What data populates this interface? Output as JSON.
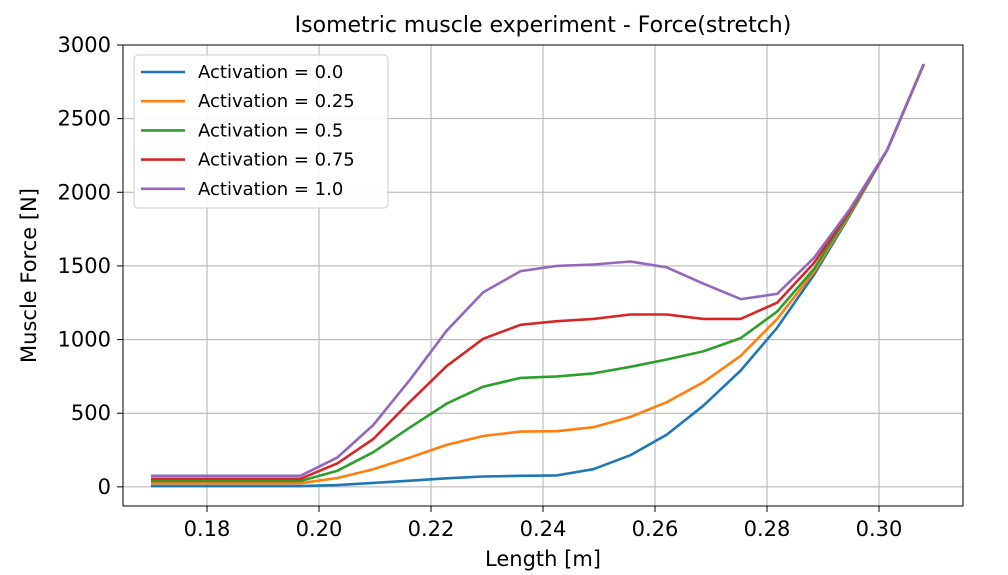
{
  "chart_data": {
    "type": "line",
    "title": "Isometric muscle experiment - Force(stretch)",
    "xlabel": "Length [m]",
    "ylabel": "Muscle Force [N]",
    "xlim": [
      0.165,
      0.315
    ],
    "ylim": [
      -130,
      3000
    ],
    "xticks": [
      0.18,
      0.2,
      0.22,
      0.24,
      0.26,
      0.28,
      0.3
    ],
    "xtick_labels": [
      "0.18",
      "0.20",
      "0.22",
      "0.24",
      "0.26",
      "0.28",
      "0.30"
    ],
    "yticks": [
      0,
      500,
      1000,
      1500,
      2000,
      2500,
      3000
    ],
    "ytick_labels": [
      "0",
      "500",
      "1000",
      "1500",
      "2000",
      "2500",
      "3000"
    ],
    "grid": true,
    "legend_position": "top-left",
    "x": [
      0.17,
      0.1967,
      0.2033,
      0.2097,
      0.2163,
      0.2228,
      0.2293,
      0.236,
      0.2425,
      0.249,
      0.2556,
      0.2621,
      0.2686,
      0.2753,
      0.2818,
      0.2884,
      0.2949,
      0.3015,
      0.308
    ],
    "series": [
      {
        "name": "Activation = 0.0",
        "color": "#1f77b4",
        "values": [
          5,
          5,
          12,
          27,
          42,
          58,
          70,
          75,
          78,
          120,
          215,
          355,
          550,
          790,
          1080,
          1440,
          1850,
          2290,
          2870
        ]
      },
      {
        "name": "Activation = 0.25",
        "color": "#ff7f0e",
        "values": [
          25,
          25,
          60,
          120,
          200,
          285,
          345,
          375,
          378,
          405,
          475,
          575,
          710,
          890,
          1140,
          1460,
          1860,
          2290,
          2870
        ]
      },
      {
        "name": "Activation = 0.5",
        "color": "#2ca02c",
        "values": [
          40,
          40,
          110,
          235,
          405,
          565,
          680,
          740,
          750,
          770,
          815,
          865,
          920,
          1010,
          1190,
          1480,
          1870,
          2290,
          2870
        ]
      },
      {
        "name": "Activation = 0.75",
        "color": "#d62728",
        "values": [
          55,
          55,
          160,
          325,
          580,
          820,
          1005,
          1100,
          1125,
          1140,
          1170,
          1170,
          1140,
          1140,
          1250,
          1520,
          1880,
          2290,
          2870
        ]
      },
      {
        "name": "Activation = 1.0",
        "color": "#9467bd",
        "values": [
          75,
          75,
          200,
          420,
          730,
          1060,
          1320,
          1465,
          1500,
          1510,
          1530,
          1490,
          1380,
          1275,
          1310,
          1555,
          1890,
          2290,
          2870
        ]
      }
    ]
  }
}
